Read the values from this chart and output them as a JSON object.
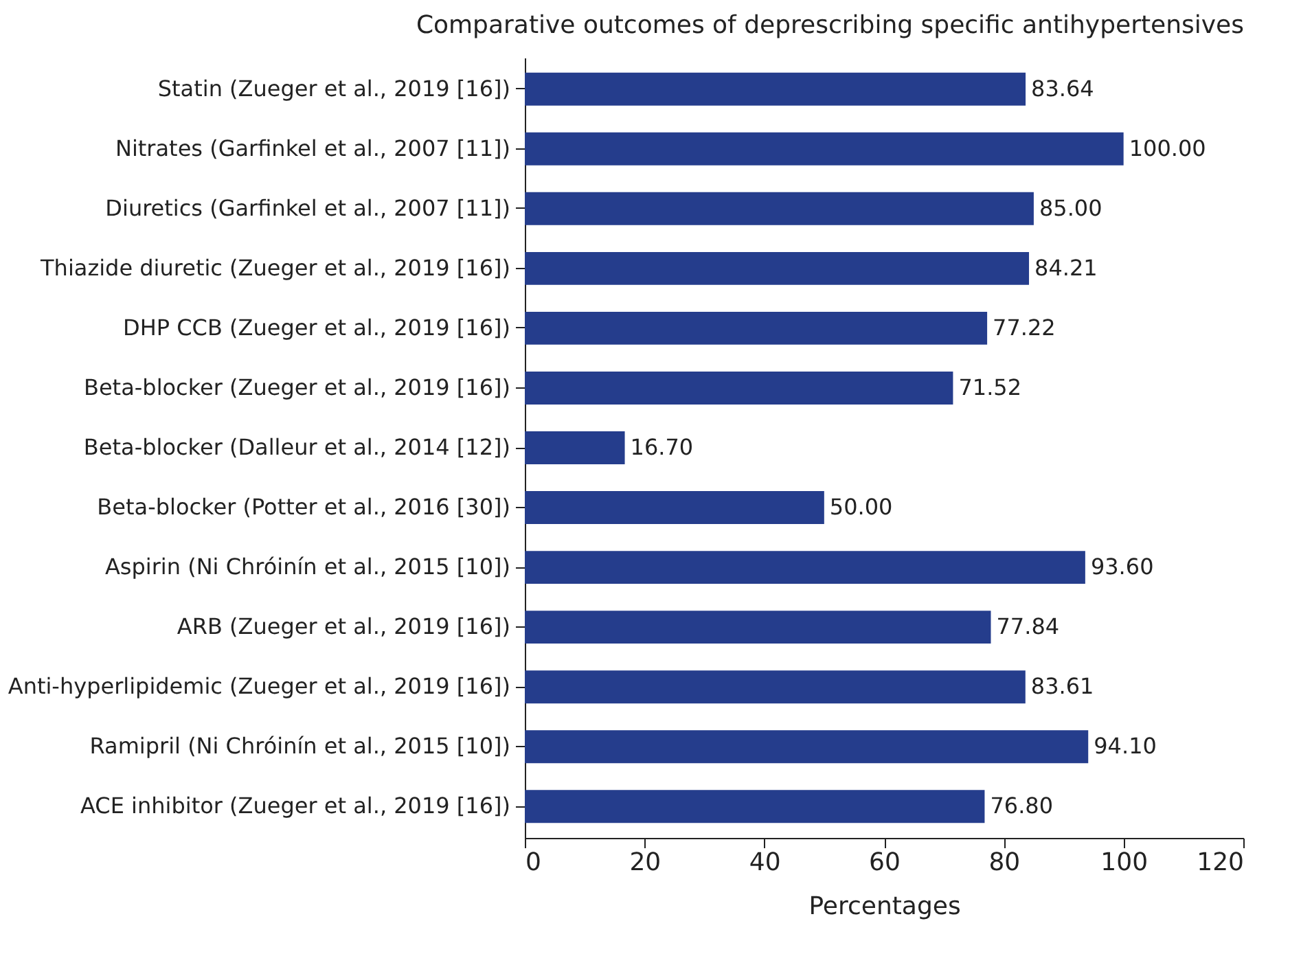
{
  "chart_data": {
    "type": "bar",
    "orientation": "horizontal",
    "title": "Comparative outcomes of deprescribing specific antihypertensives",
    "xlabel": "Percentages",
    "categories": [
      "Statin (Zueger et al., 2019 [16])",
      "Nitrates (Garfinkel et al., 2007 [11])",
      "Diuretics (Garfinkel et al., 2007 [11])",
      "Thiazide diuretic (Zueger et al., 2019 [16])",
      "DHP CCB (Zueger et al., 2019 [16])",
      "Beta-blocker (Zueger et al., 2019 [16])",
      "Beta-blocker (Dalleur et al., 2014 [12])",
      "Beta-blocker (Potter et al., 2016 [30])",
      "Aspirin (Ni Chróinín et al., 2015 [10])",
      "ARB (Zueger et al., 2019 [16])",
      "Anti-hyperlipidemic (Zueger et al., 2019 [16])",
      "Ramipril (Ni Chróinín et al., 2015 [10])",
      "ACE inhibitor (Zueger et al., 2019 [16])"
    ],
    "values": [
      83.64,
      100.0,
      85.0,
      84.21,
      77.22,
      71.52,
      16.7,
      50.0,
      93.6,
      77.84,
      83.61,
      94.1,
      76.8
    ],
    "value_labels": [
      "83.64",
      "100.00",
      "85.00",
      "84.21",
      "77.22",
      "71.52",
      "16.70",
      "50.00",
      "93.60",
      "77.84",
      "83.61",
      "94.10",
      "76.80"
    ],
    "color": "#253d8c",
    "xlim": [
      0,
      120
    ],
    "xticks": [
      0,
      20,
      40,
      60,
      80,
      100,
      120
    ],
    "grid": false
  }
}
